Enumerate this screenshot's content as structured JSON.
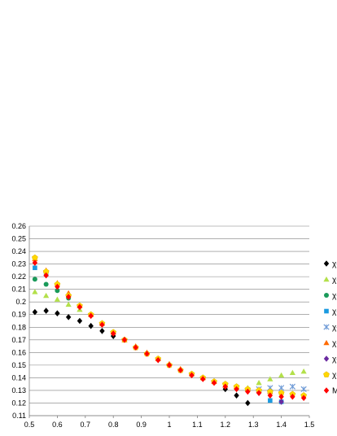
{
  "chart_data": {
    "type": "scatter",
    "title": "",
    "xlabel": "",
    "ylabel": "",
    "xlim": [
      0.5,
      1.5
    ],
    "ylim": [
      0.11,
      0.26
    ],
    "x_ticks": [
      "0.5",
      "0.6",
      "0.7",
      "0.8",
      "0.9",
      "1",
      "1.1",
      "1.2",
      "1.3",
      "1.4",
      "1.5"
    ],
    "y_ticks": [
      "0.11",
      "0.12",
      "0.13",
      "0.14",
      "0.15",
      "0.16",
      "0.17",
      "0.18",
      "0.19",
      "0.2",
      "0.21",
      "0.22",
      "0.23",
      "0.24",
      "0.25",
      "0.26"
    ],
    "grid": "horizontal",
    "legend_position": "right",
    "series": [
      {
        "name": "χ-",
        "marker": "diamond",
        "color": "#000000",
        "points": [
          [
            0.52,
            0.192
          ],
          [
            0.56,
            0.193
          ],
          [
            0.6,
            0.191
          ],
          [
            0.64,
            0.188
          ],
          [
            0.68,
            0.185
          ],
          [
            0.72,
            0.181
          ],
          [
            0.76,
            0.177
          ],
          [
            0.8,
            0.173
          ],
          [
            1.2,
            0.131
          ],
          [
            1.24,
            0.126
          ],
          [
            1.28,
            0.12
          ]
        ]
      },
      {
        "name": "χ-",
        "marker": "triangle",
        "color": "#b3e04a",
        "points": [
          [
            0.52,
            0.208
          ],
          [
            0.56,
            0.205
          ],
          [
            0.6,
            0.202
          ],
          [
            0.64,
            0.198
          ],
          [
            0.68,
            0.194
          ],
          [
            1.28,
            0.132
          ],
          [
            1.32,
            0.136
          ],
          [
            1.36,
            0.139
          ],
          [
            1.4,
            0.142
          ],
          [
            1.44,
            0.144
          ],
          [
            1.48,
            0.145
          ]
        ]
      },
      {
        "name": "χ-",
        "marker": "circle",
        "color": "#1a9a5a",
        "points": [
          [
            0.52,
            0.218
          ],
          [
            0.56,
            0.214
          ],
          [
            0.6,
            0.209
          ],
          [
            0.64,
            0.203
          ]
        ]
      },
      {
        "name": "χ-",
        "marker": "square",
        "color": "#1a9ae0",
        "points": [
          [
            0.52,
            0.227
          ],
          [
            0.56,
            0.222
          ],
          [
            1.36,
            0.122
          ],
          [
            1.4,
            0.121
          ]
        ]
      },
      {
        "name": "χ-",
        "marker": "x",
        "color": "#6f9bd6",
        "points": [
          [
            1.32,
            0.131
          ],
          [
            1.36,
            0.132
          ],
          [
            1.4,
            0.132
          ],
          [
            1.44,
            0.133
          ],
          [
            1.48,
            0.131
          ]
        ]
      },
      {
        "name": "χ-",
        "marker": "triangle",
        "color": "#ff6a00",
        "points": [
          [
            0.52,
            0.234
          ],
          [
            0.56,
            0.225
          ],
          [
            0.6,
            0.215
          ],
          [
            0.64,
            0.207
          ],
          [
            0.68,
            0.197
          ],
          [
            0.72,
            0.19
          ],
          [
            0.76,
            0.183
          ],
          [
            0.8,
            0.176
          ],
          [
            0.84,
            0.17
          ],
          [
            0.88,
            0.165
          ],
          [
            0.92,
            0.16
          ],
          [
            0.96,
            0.155
          ],
          [
            1.0,
            0.151
          ],
          [
            1.04,
            0.147
          ],
          [
            1.08,
            0.143
          ],
          [
            1.12,
            0.14
          ],
          [
            1.16,
            0.137
          ],
          [
            1.2,
            0.134
          ],
          [
            1.24,
            0.133
          ],
          [
            1.28,
            0.131
          ],
          [
            1.32,
            0.13
          ],
          [
            1.36,
            0.129
          ]
        ]
      },
      {
        "name": "χ-",
        "marker": "diamond",
        "color": "#6a2aa0",
        "points": [
          [
            1.4,
            0.121
          ],
          [
            1.36,
            0.128
          ],
          [
            1.32,
            0.128
          ]
        ]
      },
      {
        "name": "χ-",
        "marker": "pentagon",
        "color": "#ffd700",
        "points": [
          [
            0.52,
            0.235
          ],
          [
            0.56,
            0.224
          ],
          [
            0.6,
            0.214
          ],
          [
            0.64,
            0.205
          ],
          [
            0.68,
            0.197
          ],
          [
            0.72,
            0.19
          ],
          [
            0.76,
            0.183
          ],
          [
            0.8,
            0.176
          ],
          [
            0.84,
            0.17
          ],
          [
            0.88,
            0.164
          ],
          [
            0.92,
            0.159
          ],
          [
            0.96,
            0.155
          ],
          [
            1.0,
            0.15
          ],
          [
            1.04,
            0.146
          ],
          [
            1.08,
            0.143
          ],
          [
            1.12,
            0.14
          ],
          [
            1.16,
            0.137
          ],
          [
            1.2,
            0.135
          ],
          [
            1.24,
            0.133
          ],
          [
            1.28,
            0.131
          ],
          [
            1.32,
            0.13
          ],
          [
            1.36,
            0.129
          ],
          [
            1.4,
            0.128
          ],
          [
            1.44,
            0.127
          ],
          [
            1.48,
            0.126
          ]
        ]
      },
      {
        "name": "M",
        "marker": "diamond",
        "color": "#ff0000",
        "points": [
          [
            0.52,
            0.231
          ],
          [
            0.56,
            0.221
          ],
          [
            0.6,
            0.212
          ],
          [
            0.64,
            0.204
          ],
          [
            0.68,
            0.196
          ],
          [
            0.72,
            0.189
          ],
          [
            0.76,
            0.182
          ],
          [
            0.8,
            0.175
          ],
          [
            0.84,
            0.17
          ],
          [
            0.88,
            0.164
          ],
          [
            0.92,
            0.159
          ],
          [
            0.96,
            0.154
          ],
          [
            1.0,
            0.15
          ],
          [
            1.04,
            0.146
          ],
          [
            1.08,
            0.142
          ],
          [
            1.12,
            0.139
          ],
          [
            1.16,
            0.136
          ],
          [
            1.2,
            0.133
          ],
          [
            1.24,
            0.131
          ],
          [
            1.28,
            0.129
          ],
          [
            1.32,
            0.128
          ],
          [
            1.36,
            0.126
          ],
          [
            1.4,
            0.125
          ],
          [
            1.44,
            0.125
          ],
          [
            1.48,
            0.124
          ]
        ]
      }
    ]
  }
}
